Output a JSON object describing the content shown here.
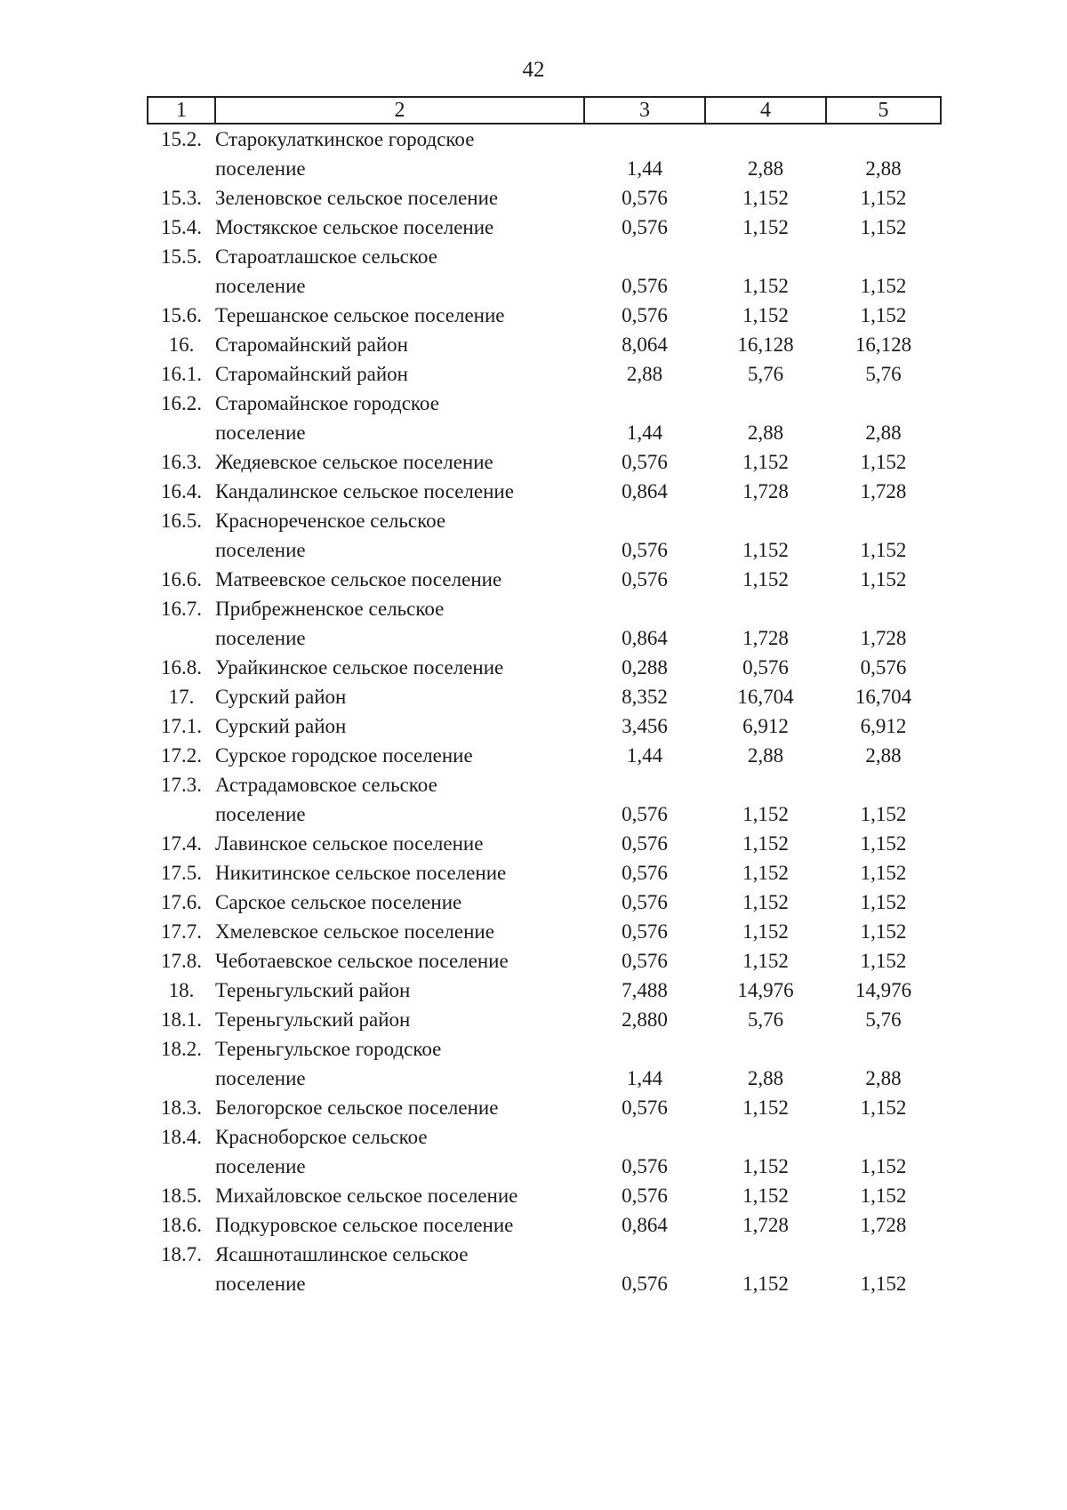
{
  "page": {
    "number": "42"
  },
  "table": {
    "headers": [
      "1",
      "2",
      "3",
      "4",
      "5"
    ],
    "rows": [
      {
        "num": "15.2.",
        "name": "Старокулаткинское городское\nпоселение",
        "c3": "1,44",
        "c4": "2,88",
        "c5": "2,88"
      },
      {
        "num": "15.3.",
        "name": "Зеленовское сельское поселение",
        "c3": "0,576",
        "c4": "1,152",
        "c5": "1,152"
      },
      {
        "num": "15.4.",
        "name": "Мостякское сельское поселение",
        "c3": "0,576",
        "c4": "1,152",
        "c5": "1,152"
      },
      {
        "num": "15.5.",
        "name": "Староатлашское сельское\nпоселение",
        "c3": "0,576",
        "c4": "1,152",
        "c5": "1,152"
      },
      {
        "num": "15.6.",
        "name": "Терешанское сельское поселение",
        "c3": "0,576",
        "c4": "1,152",
        "c5": "1,152"
      },
      {
        "num": "16.",
        "name": "Старомайнский район",
        "c3": "8,064",
        "c4": "16,128",
        "c5": "16,128"
      },
      {
        "num": "16.1.",
        "name": "Старомайнский район",
        "c3": "2,88",
        "c4": "5,76",
        "c5": "5,76"
      },
      {
        "num": "16.2.",
        "name": "Старомайнское городское\nпоселение",
        "c3": "1,44",
        "c4": "2,88",
        "c5": "2,88"
      },
      {
        "num": "16.3.",
        "name": "Жедяевское сельское поселение",
        "c3": "0,576",
        "c4": "1,152",
        "c5": "1,152"
      },
      {
        "num": "16.4.",
        "name": "Кандалинское сельское поселение",
        "c3": "0,864",
        "c4": "1,728",
        "c5": "1,728"
      },
      {
        "num": "16.5.",
        "name": "Краснореченское сельское\nпоселение",
        "c3": "0,576",
        "c4": "1,152",
        "c5": "1,152"
      },
      {
        "num": "16.6.",
        "name": "Матвеевское сельское поселение",
        "c3": "0,576",
        "c4": "1,152",
        "c5": "1,152"
      },
      {
        "num": "16.7.",
        "name": "Прибрежненское сельское\nпоселение",
        "c3": "0,864",
        "c4": "1,728",
        "c5": "1,728"
      },
      {
        "num": "16.8.",
        "name": "Урайкинское сельское поселение",
        "c3": "0,288",
        "c4": "0,576",
        "c5": "0,576"
      },
      {
        "num": "17.",
        "name": "Сурский район",
        "c3": "8,352",
        "c4": "16,704",
        "c5": "16,704"
      },
      {
        "num": "17.1.",
        "name": "Сурский район",
        "c3": "3,456",
        "c4": "6,912",
        "c5": "6,912"
      },
      {
        "num": "17.2.",
        "name": "Сурское городское поселение",
        "c3": "1,44",
        "c4": "2,88",
        "c5": "2,88"
      },
      {
        "num": "17.3.",
        "name": "Астрадамовское сельское\nпоселение",
        "c3": "0,576",
        "c4": "1,152",
        "c5": "1,152"
      },
      {
        "num": "17.4.",
        "name": "Лавинское сельское поселение",
        "c3": "0,576",
        "c4": "1,152",
        "c5": "1,152"
      },
      {
        "num": "17.5.",
        "name": "Никитинское сельское поселение",
        "c3": "0,576",
        "c4": "1,152",
        "c5": "1,152"
      },
      {
        "num": "17.6.",
        "name": "Сарское сельское поселение",
        "c3": "0,576",
        "c4": "1,152",
        "c5": "1,152"
      },
      {
        "num": "17.7.",
        "name": "Хмелевское сельское поселение",
        "c3": "0,576",
        "c4": "1,152",
        "c5": "1,152"
      },
      {
        "num": "17.8.",
        "name": "Чеботаевское сельское поселение",
        "c3": "0,576",
        "c4": "1,152",
        "c5": "1,152"
      },
      {
        "num": "18.",
        "name": "Тереньгульский район",
        "c3": "7,488",
        "c4": "14,976",
        "c5": "14,976"
      },
      {
        "num": "18.1.",
        "name": "Тереньгульский район",
        "c3": "2,880",
        "c4": "5,76",
        "c5": "5,76"
      },
      {
        "num": "18.2.",
        "name": "Тереньгульское городское\nпоселение",
        "c3": "1,44",
        "c4": "2,88",
        "c5": "2,88"
      },
      {
        "num": "18.3.",
        "name": "Белогорское сельское поселение",
        "c3": "0,576",
        "c4": "1,152",
        "c5": "1,152"
      },
      {
        "num": "18.4.",
        "name": "Красноборское сельское\nпоселение",
        "c3": "0,576",
        "c4": "1,152",
        "c5": "1,152"
      },
      {
        "num": "18.5.",
        "name": "Михайловское сельское поселение",
        "c3": "0,576",
        "c4": "1,152",
        "c5": "1,152"
      },
      {
        "num": "18.6.",
        "name": "Подкуровское сельское поселение",
        "c3": "0,864",
        "c4": "1,728",
        "c5": "1,728"
      },
      {
        "num": "18.7.",
        "name": "Ясашноташлинское сельское\nпоселение",
        "c3": "0,576",
        "c4": "1,152",
        "c5": "1,152"
      }
    ]
  }
}
